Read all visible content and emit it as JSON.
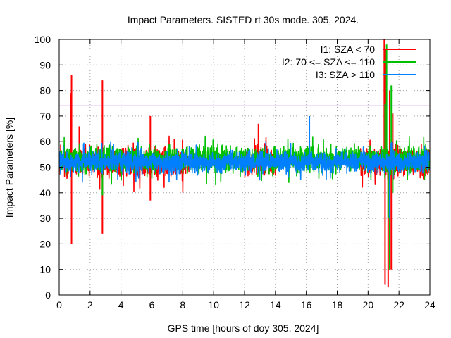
{
  "chart_data": {
    "type": "line",
    "title": "Impact Parameters. SISTED rt 30s mode. 305, 2024.",
    "xlabel": "GPS time [hours of doy 305, 2024]",
    "ylabel": "Impact Parameters [%]",
    "xlim": [
      0,
      24
    ],
    "ylim": [
      0,
      100
    ],
    "x_ticks": [
      0,
      2,
      4,
      6,
      8,
      10,
      12,
      14,
      16,
      18,
      20,
      22,
      24
    ],
    "y_ticks": [
      0,
      10,
      20,
      30,
      40,
      50,
      60,
      70,
      80,
      90,
      100
    ],
    "grid": true,
    "legend_position": "top-right",
    "reference_line": {
      "y": 74,
      "color": "#9400d3"
    },
    "series": [
      {
        "name": "I1: SZA < 70",
        "color": "#ff0000",
        "baseline": 52,
        "spread": 6,
        "x_intervals": [
          [
            0,
            8.5
          ],
          [
            12,
            14
          ],
          [
            19.5,
            24
          ]
        ],
        "spikes": [
          [
            0.75,
            79
          ],
          [
            0.8,
            86
          ],
          [
            0.8,
            20
          ],
          [
            1.3,
            66
          ],
          [
            2.8,
            84
          ],
          [
            2.8,
            24
          ],
          [
            5.9,
            70
          ],
          [
            5.9,
            37
          ],
          [
            12.9,
            67
          ],
          [
            21.05,
            100
          ],
          [
            21.1,
            4
          ],
          [
            21.15,
            96
          ],
          [
            21.3,
            3
          ],
          [
            21.4,
            80
          ],
          [
            21.5,
            10
          ],
          [
            21.6,
            71
          ],
          [
            21.8,
            59
          ]
        ]
      },
      {
        "name": "I2: 70 <= SZA <= 110",
        "color": "#00c000",
        "baseline": 53,
        "spread": 5,
        "x_intervals": [
          [
            0,
            24
          ]
        ],
        "spikes": [
          [
            2.8,
            39
          ],
          [
            21.1,
            75
          ],
          [
            21.2,
            98
          ],
          [
            21.3,
            30
          ],
          [
            21.4,
            10
          ],
          [
            21.5,
            82
          ],
          [
            21.6,
            40
          ]
        ]
      },
      {
        "name": "I3: SZA > 110",
        "color": "#0080ff",
        "baseline": 52,
        "spread": 4,
        "x_intervals": [
          [
            0,
            24
          ]
        ],
        "spikes": [
          [
            16.2,
            70
          ],
          [
            21.2,
            55
          ],
          [
            21.4,
            30
          ]
        ]
      }
    ]
  }
}
